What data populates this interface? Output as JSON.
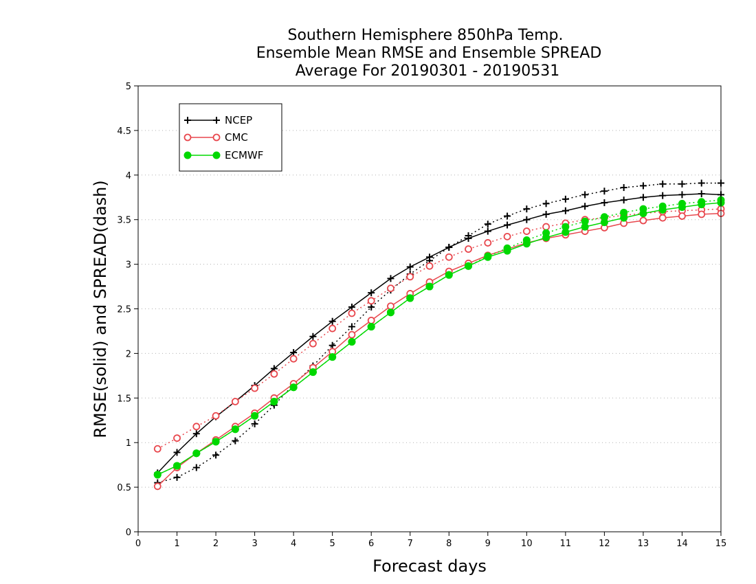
{
  "chart_data": {
    "type": "line",
    "title": [
      "Southern Hemisphere 850hPa Temp.",
      "Ensemble Mean RMSE and Ensemble SPREAD",
      "Average For 20190301 - 20190531"
    ],
    "xlabel": "Forecast days",
    "ylabel": "RMSE(solid) and SPREAD(dash)",
    "xlim": [
      0,
      15
    ],
    "ylim": [
      0,
      5
    ],
    "xticks": [
      0,
      1,
      2,
      3,
      4,
      5,
      6,
      7,
      8,
      9,
      10,
      11,
      12,
      13,
      14,
      15
    ],
    "xtick_labels": [
      "0",
      "1",
      "2",
      "3",
      "4",
      "5",
      "6",
      "7",
      "8",
      "9",
      "10",
      "11",
      "12",
      "13",
      "14",
      "15"
    ],
    "yticks": [
      0,
      0.5,
      1,
      1.5,
      2,
      2.5,
      3,
      3.5,
      4,
      4.5,
      5
    ],
    "ytick_labels": [
      "0",
      "0.5",
      "1",
      "1.5",
      "2",
      "2.5",
      "3",
      "3.5",
      "4",
      "4.5",
      "5"
    ],
    "grid": "horizontal dotted",
    "legend_position": "top-left",
    "x": [
      0.5,
      1,
      1.5,
      2,
      2.5,
      3,
      3.5,
      4,
      4.5,
      5,
      5.5,
      6,
      6.5,
      7,
      7.5,
      8,
      8.5,
      9,
      9.5,
      10,
      10.5,
      11,
      11.5,
      12,
      12.5,
      13,
      13.5,
      14,
      14.5,
      15
    ],
    "series": [
      {
        "name": "NCEP",
        "color": "#000000",
        "marker": "plus",
        "rmse": [
          0.66,
          0.89,
          1.1,
          1.29,
          1.46,
          1.64,
          1.83,
          2.01,
          2.19,
          2.36,
          2.52,
          2.68,
          2.84,
          2.97,
          3.08,
          3.19,
          3.29,
          3.37,
          3.44,
          3.5,
          3.56,
          3.6,
          3.65,
          3.69,
          3.72,
          3.75,
          3.77,
          3.78,
          3.79,
          3.78
        ],
        "spread": [
          0.55,
          0.61,
          0.72,
          0.86,
          1.02,
          1.21,
          1.42,
          1.65,
          1.86,
          2.09,
          2.3,
          2.52,
          2.71,
          2.89,
          3.04,
          3.19,
          3.32,
          3.45,
          3.54,
          3.62,
          3.68,
          3.73,
          3.78,
          3.82,
          3.86,
          3.88,
          3.9,
          3.9,
          3.91,
          3.91
        ]
      },
      {
        "name": "CMC",
        "color": "#e8474d",
        "marker": "open-circle",
        "rmse": [
          0.51,
          0.72,
          0.88,
          1.03,
          1.18,
          1.33,
          1.5,
          1.66,
          1.84,
          2.02,
          2.21,
          2.37,
          2.53,
          2.67,
          2.8,
          2.92,
          3.01,
          3.1,
          3.17,
          3.24,
          3.29,
          3.33,
          3.37,
          3.41,
          3.46,
          3.49,
          3.52,
          3.54,
          3.56,
          3.57
        ],
        "spread": [
          0.93,
          1.05,
          1.18,
          1.3,
          1.46,
          1.61,
          1.77,
          1.94,
          2.11,
          2.28,
          2.45,
          2.59,
          2.73,
          2.86,
          2.98,
          3.08,
          3.17,
          3.24,
          3.31,
          3.37,
          3.42,
          3.46,
          3.5,
          3.52,
          3.55,
          3.57,
          3.59,
          3.6,
          3.61,
          3.62
        ]
      },
      {
        "name": "ECMWF",
        "color": "#00d800",
        "marker": "filled-circle",
        "rmse": [
          0.64,
          0.74,
          0.88,
          1.01,
          1.15,
          1.3,
          1.46,
          1.62,
          1.79,
          1.96,
          2.13,
          2.3,
          2.46,
          2.62,
          2.75,
          2.88,
          2.98,
          3.08,
          3.15,
          3.23,
          3.3,
          3.36,
          3.42,
          3.47,
          3.52,
          3.57,
          3.61,
          3.64,
          3.67,
          3.69
        ],
        "spread": [
          0.64,
          0.74,
          0.88,
          1.01,
          1.15,
          1.3,
          1.46,
          1.62,
          1.79,
          1.96,
          2.13,
          2.3,
          2.46,
          2.62,
          2.75,
          2.88,
          2.98,
          3.09,
          3.18,
          3.27,
          3.35,
          3.42,
          3.48,
          3.53,
          3.58,
          3.62,
          3.65,
          3.68,
          3.7,
          3.72
        ]
      }
    ]
  }
}
